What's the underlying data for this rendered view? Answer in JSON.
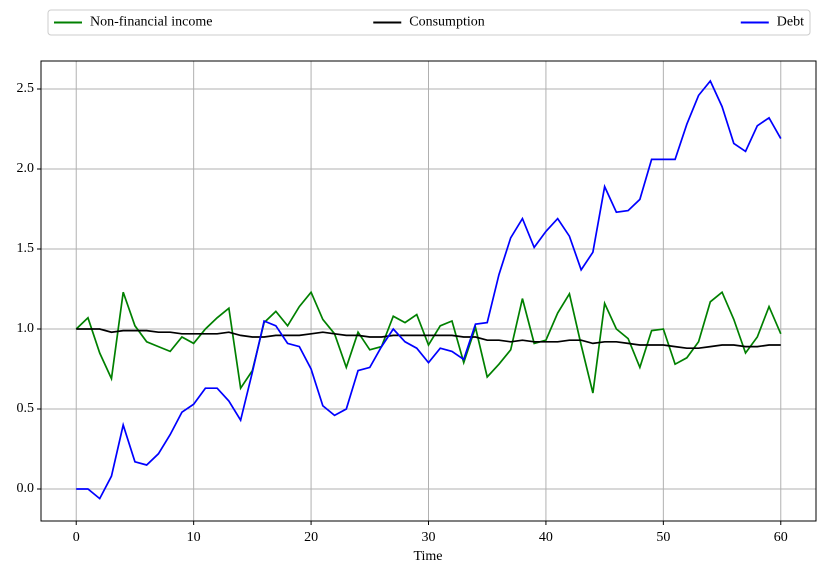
{
  "chart_data": {
    "type": "line",
    "xlabel": "Time",
    "x": [
      0,
      1,
      2,
      3,
      4,
      5,
      6,
      7,
      8,
      9,
      10,
      11,
      12,
      13,
      14,
      15,
      16,
      17,
      18,
      19,
      20,
      21,
      22,
      23,
      24,
      25,
      26,
      27,
      28,
      29,
      30,
      31,
      32,
      33,
      34,
      35,
      36,
      37,
      38,
      39,
      40,
      41,
      42,
      43,
      44,
      45,
      46,
      47,
      48,
      49,
      50,
      51,
      52,
      53,
      54,
      55,
      56,
      57,
      58,
      59,
      60
    ],
    "series": [
      {
        "name": "Non-financial income",
        "color": "#008000",
        "values": [
          1.0,
          1.07,
          0.85,
          0.69,
          1.23,
          1.02,
          0.92,
          0.89,
          0.86,
          0.95,
          0.91,
          1.0,
          1.07,
          1.13,
          0.63,
          0.74,
          1.04,
          1.11,
          1.02,
          1.14,
          1.23,
          1.06,
          0.97,
          0.76,
          0.98,
          0.87,
          0.89,
          1.08,
          1.04,
          1.09,
          0.9,
          1.02,
          1.05,
          0.79,
          1.01,
          0.7,
          0.78,
          0.87,
          1.19,
          0.91,
          0.93,
          1.1,
          1.22,
          0.9,
          0.6,
          1.16,
          1.0,
          0.94,
          0.76,
          0.99,
          1.0,
          0.78,
          0.82,
          0.92,
          1.17,
          1.23,
          1.06,
          0.85,
          0.95,
          1.14,
          0.97
        ]
      },
      {
        "name": "Consumption",
        "color": "#000000",
        "values": [
          1.0,
          1.0,
          1.0,
          0.98,
          0.99,
          0.99,
          0.99,
          0.98,
          0.98,
          0.97,
          0.97,
          0.97,
          0.97,
          0.98,
          0.96,
          0.95,
          0.95,
          0.96,
          0.96,
          0.96,
          0.97,
          0.98,
          0.97,
          0.96,
          0.96,
          0.95,
          0.95,
          0.96,
          0.96,
          0.96,
          0.96,
          0.96,
          0.96,
          0.95,
          0.95,
          0.93,
          0.93,
          0.92,
          0.93,
          0.92,
          0.92,
          0.92,
          0.93,
          0.93,
          0.91,
          0.92,
          0.92,
          0.91,
          0.9,
          0.9,
          0.9,
          0.89,
          0.88,
          0.88,
          0.89,
          0.9,
          0.9,
          0.89,
          0.89,
          0.9,
          0.9
        ]
      },
      {
        "name": "Debt",
        "color": "#0000ff",
        "values": [
          0,
          0,
          -0.06,
          0.08,
          0.4,
          0.17,
          0.15,
          0.22,
          0.34,
          0.48,
          0.53,
          0.63,
          0.63,
          0.55,
          0.43,
          0.73,
          1.05,
          1.02,
          0.91,
          0.89,
          0.75,
          0.52,
          0.46,
          0.5,
          0.74,
          0.76,
          0.89,
          1.0,
          0.92,
          0.88,
          0.79,
          0.88,
          0.86,
          0.81,
          1.03,
          1.04,
          1.34,
          1.57,
          1.69,
          1.51,
          1.61,
          1.69,
          1.58,
          1.37,
          1.48,
          1.89,
          1.73,
          1.74,
          1.81,
          2.06,
          2.06,
          2.06,
          2.28,
          2.46,
          2.55,
          2.39,
          2.16,
          2.11,
          2.27,
          2.32,
          2.19
        ]
      }
    ],
    "xlim": [
      -3,
      63
    ],
    "ylim": [
      -0.2,
      2.675
    ],
    "xticks": [
      0,
      10,
      20,
      30,
      40,
      50,
      60
    ],
    "yticks": [
      {
        "value": 0,
        "label": "0.0"
      },
      {
        "value": 0.5,
        "label": "0.5"
      },
      {
        "value": 1,
        "label": "1.0"
      },
      {
        "value": 1.5,
        "label": "1.5"
      },
      {
        "value": 2,
        "label": "2.0"
      },
      {
        "value": 2.5,
        "label": "2.5"
      }
    ],
    "grid": true,
    "legend": "top"
  }
}
